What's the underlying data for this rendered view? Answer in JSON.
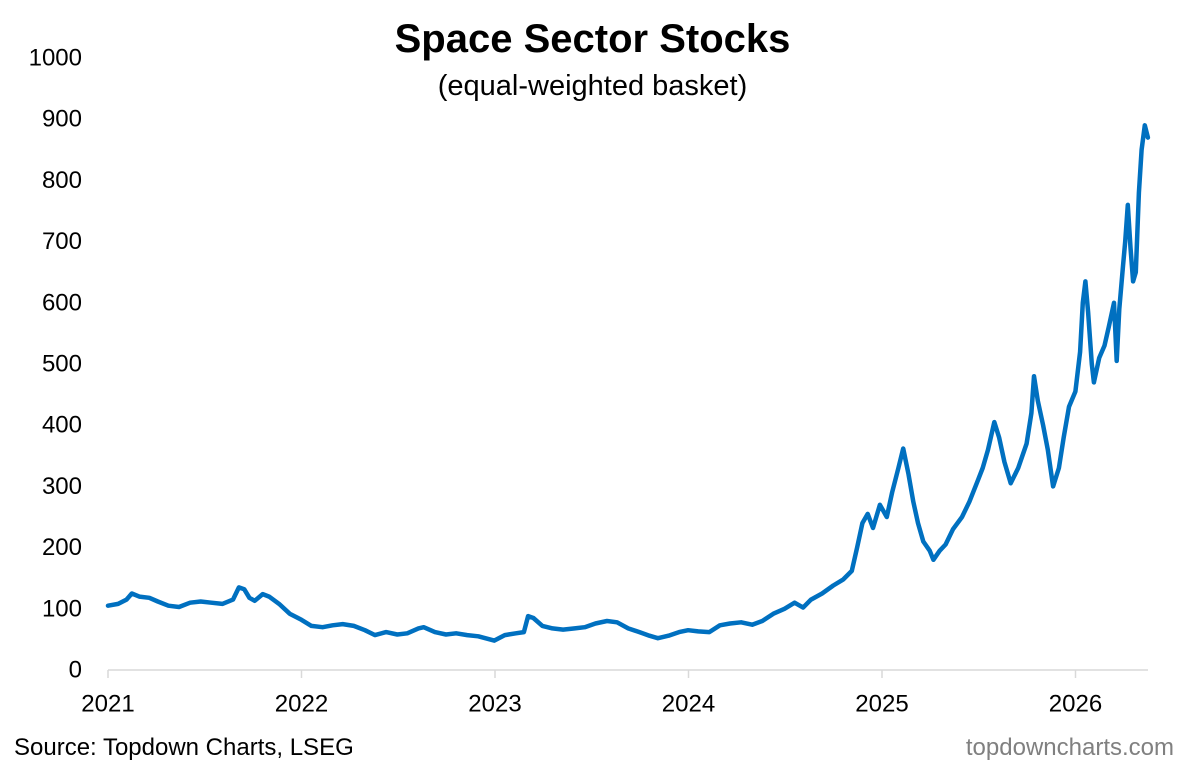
{
  "chart_data": {
    "type": "line",
    "title": "Space Sector Stocks",
    "subtitle": "(equal-weighted basket)",
    "xlabel": "",
    "ylabel": "",
    "x_ticks": [
      "2021",
      "2022",
      "2023",
      "2024",
      "2025",
      "2026"
    ],
    "y_ticks": [
      0,
      100,
      200,
      300,
      400,
      500,
      600,
      700,
      800,
      900,
      1000
    ],
    "xlim": [
      "2021-01-01",
      "2026-05-20"
    ],
    "ylim": [
      0,
      1000
    ],
    "grid": false,
    "legend": "none",
    "series": [
      {
        "color": "#0070C0",
        "points": [
          [
            "2021-01-01",
            105
          ],
          [
            "2021-01-20",
            108
          ],
          [
            "2021-02-05",
            115
          ],
          [
            "2021-02-15",
            125
          ],
          [
            "2021-03-01",
            120
          ],
          [
            "2021-03-20",
            118
          ],
          [
            "2021-04-05",
            112
          ],
          [
            "2021-04-25",
            105
          ],
          [
            "2021-05-15",
            103
          ],
          [
            "2021-06-05",
            110
          ],
          [
            "2021-06-25",
            112
          ],
          [
            "2021-07-15",
            110
          ],
          [
            "2021-08-05",
            108
          ],
          [
            "2021-08-25",
            115
          ],
          [
            "2021-09-05",
            135
          ],
          [
            "2021-09-15",
            132
          ],
          [
            "2021-09-25",
            118
          ],
          [
            "2021-10-05",
            113
          ],
          [
            "2021-10-20",
            124
          ],
          [
            "2021-11-01",
            120
          ],
          [
            "2021-11-20",
            108
          ],
          [
            "2021-12-10",
            92
          ],
          [
            "2022-01-01",
            82
          ],
          [
            "2022-01-20",
            72
          ],
          [
            "2022-02-10",
            70
          ],
          [
            "2022-03-01",
            73
          ],
          [
            "2022-03-20",
            75
          ],
          [
            "2022-04-10",
            72
          ],
          [
            "2022-05-01",
            65
          ],
          [
            "2022-05-20",
            57
          ],
          [
            "2022-06-10",
            62
          ],
          [
            "2022-07-01",
            58
          ],
          [
            "2022-07-20",
            60
          ],
          [
            "2022-08-10",
            68
          ],
          [
            "2022-08-20",
            70
          ],
          [
            "2022-09-10",
            62
          ],
          [
            "2022-10-01",
            58
          ],
          [
            "2022-10-20",
            60
          ],
          [
            "2022-11-10",
            57
          ],
          [
            "2022-12-01",
            55
          ],
          [
            "2022-12-31",
            48
          ],
          [
            "2023-01-20",
            57
          ],
          [
            "2023-02-10",
            60
          ],
          [
            "2023-02-25",
            62
          ],
          [
            "2023-03-05",
            88
          ],
          [
            "2023-03-15",
            85
          ],
          [
            "2023-04-01",
            72
          ],
          [
            "2023-04-20",
            68
          ],
          [
            "2023-05-10",
            66
          ],
          [
            "2023-06-01",
            68
          ],
          [
            "2023-06-20",
            70
          ],
          [
            "2023-07-10",
            76
          ],
          [
            "2023-08-01",
            80
          ],
          [
            "2023-08-20",
            78
          ],
          [
            "2023-09-10",
            68
          ],
          [
            "2023-10-01",
            62
          ],
          [
            "2023-10-20",
            56
          ],
          [
            "2023-11-05",
            52
          ],
          [
            "2023-11-25",
            56
          ],
          [
            "2023-12-15",
            62
          ],
          [
            "2024-01-01",
            65
          ],
          [
            "2024-01-20",
            63
          ],
          [
            "2024-02-10",
            62
          ],
          [
            "2024-03-01",
            73
          ],
          [
            "2024-03-20",
            76
          ],
          [
            "2024-04-10",
            78
          ],
          [
            "2024-05-01",
            74
          ],
          [
            "2024-05-20",
            80
          ],
          [
            "2024-06-10",
            92
          ],
          [
            "2024-07-01",
            100
          ],
          [
            "2024-07-20",
            110
          ],
          [
            "2024-08-05",
            102
          ],
          [
            "2024-08-20",
            115
          ],
          [
            "2024-09-10",
            125
          ],
          [
            "2024-10-01",
            138
          ],
          [
            "2024-10-20",
            148
          ],
          [
            "2024-11-05",
            162
          ],
          [
            "2024-11-15",
            200
          ],
          [
            "2024-11-25",
            240
          ],
          [
            "2024-12-05",
            255
          ],
          [
            "2024-12-15",
            232
          ],
          [
            "2024-12-28",
            270
          ],
          [
            "2025-01-10",
            250
          ],
          [
            "2025-01-20",
            290
          ],
          [
            "2025-02-01",
            330
          ],
          [
            "2025-02-10",
            362
          ],
          [
            "2025-02-20",
            320
          ],
          [
            "2025-03-01",
            275
          ],
          [
            "2025-03-10",
            240
          ],
          [
            "2025-03-20",
            210
          ],
          [
            "2025-04-01",
            195
          ],
          [
            "2025-04-08",
            180
          ],
          [
            "2025-04-20",
            195
          ],
          [
            "2025-05-01",
            205
          ],
          [
            "2025-05-15",
            230
          ],
          [
            "2025-06-01",
            250
          ],
          [
            "2025-06-15",
            275
          ],
          [
            "2025-07-01",
            310
          ],
          [
            "2025-07-10",
            330
          ],
          [
            "2025-07-20",
            360
          ],
          [
            "2025-08-01",
            405
          ],
          [
            "2025-08-10",
            380
          ],
          [
            "2025-08-20",
            340
          ],
          [
            "2025-09-01",
            305
          ],
          [
            "2025-09-15",
            330
          ],
          [
            "2025-10-01",
            370
          ],
          [
            "2025-10-10",
            420
          ],
          [
            "2025-10-15",
            480
          ],
          [
            "2025-10-22",
            440
          ],
          [
            "2025-11-01",
            400
          ],
          [
            "2025-11-10",
            360
          ],
          [
            "2025-11-20",
            300
          ],
          [
            "2025-12-01",
            330
          ],
          [
            "2025-12-10",
            380
          ],
          [
            "2025-12-20",
            430
          ],
          [
            "2026-01-01",
            455
          ],
          [
            "2026-01-10",
            520
          ],
          [
            "2026-01-15",
            600
          ],
          [
            "2026-01-20",
            635
          ],
          [
            "2026-01-25",
            585
          ],
          [
            "2026-02-01",
            500
          ],
          [
            "2026-02-05",
            470
          ],
          [
            "2026-02-15",
            510
          ],
          [
            "2026-02-25",
            530
          ],
          [
            "2026-03-05",
            560
          ],
          [
            "2026-03-15",
            600
          ],
          [
            "2026-03-20",
            505
          ],
          [
            "2026-03-25",
            590
          ],
          [
            "2026-04-01",
            660
          ],
          [
            "2026-04-05",
            700
          ],
          [
            "2026-04-10",
            760
          ],
          [
            "2026-04-15",
            690
          ],
          [
            "2026-04-20",
            635
          ],
          [
            "2026-04-25",
            650
          ],
          [
            "2026-05-01",
            780
          ],
          [
            "2026-05-06",
            850
          ],
          [
            "2026-05-12",
            890
          ],
          [
            "2026-05-18",
            870
          ]
        ]
      }
    ]
  },
  "footer": {
    "source": "Source: Topdown Charts, LSEG",
    "brand": "topdowncharts.com"
  }
}
